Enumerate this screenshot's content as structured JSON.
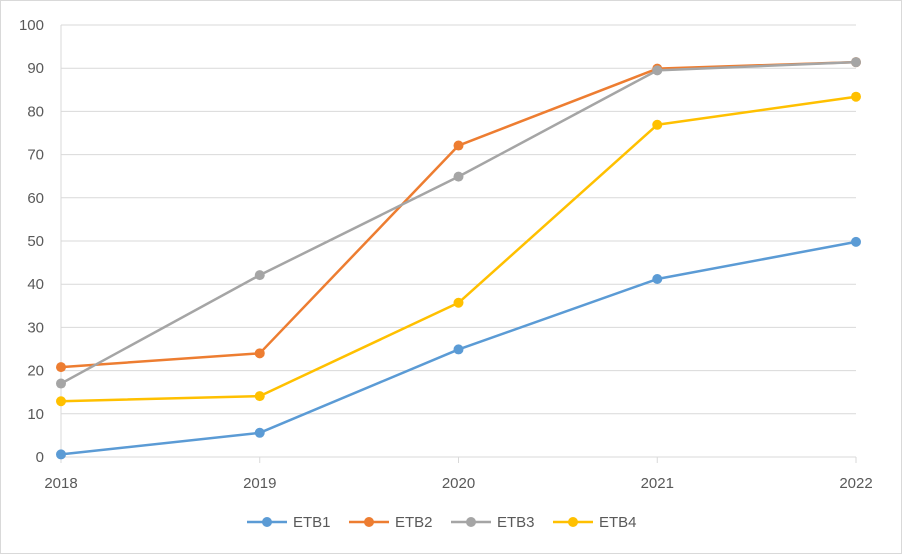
{
  "chart_data": {
    "type": "line",
    "title": "",
    "xlabel": "",
    "ylabel": "",
    "x": [
      "2018",
      "2019",
      "2020",
      "2021",
      "2022"
    ],
    "ylim": [
      0,
      100
    ],
    "yticks": [
      0,
      10,
      20,
      30,
      40,
      50,
      60,
      70,
      80,
      90,
      100
    ],
    "grid": "horizontal",
    "legend_position": "bottom",
    "series": [
      {
        "name": "ETB1",
        "color": "#5b9bd5",
        "values": [
          0.6,
          5.6,
          24.9,
          41.2,
          49.8
        ]
      },
      {
        "name": "ETB2",
        "color": "#ed7d31",
        "values": [
          20.8,
          24.0,
          72.1,
          89.9,
          91.4
        ]
      },
      {
        "name": "ETB3",
        "color": "#a5a5a5",
        "values": [
          17.0,
          42.1,
          64.9,
          89.5,
          91.4
        ]
      },
      {
        "name": "ETB4",
        "color": "#ffc000",
        "values": [
          12.9,
          14.1,
          35.7,
          76.9,
          83.4
        ]
      }
    ]
  }
}
